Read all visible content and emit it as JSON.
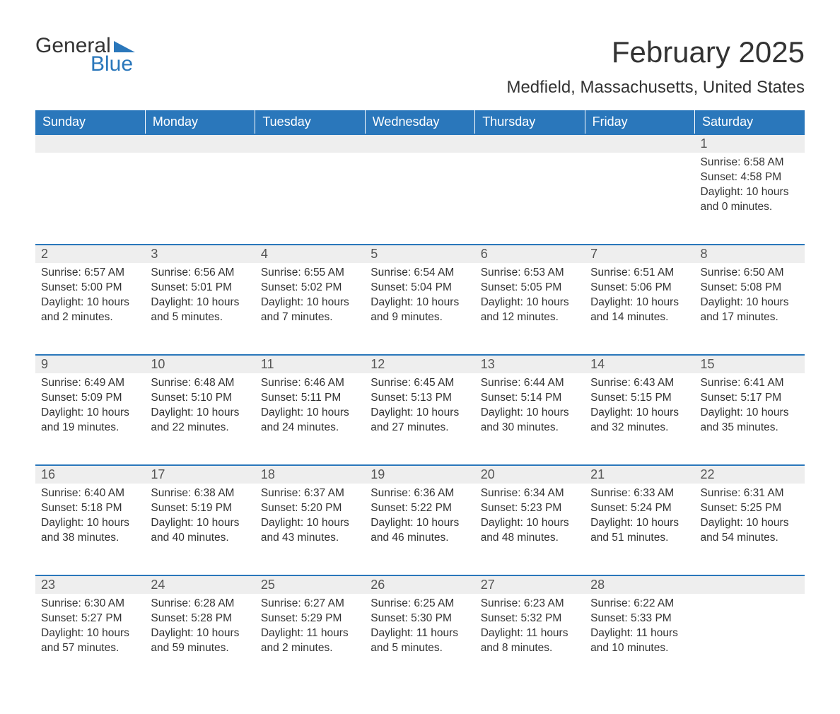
{
  "logo": {
    "text_general": "General",
    "text_blue": "Blue",
    "brand_color": "#2a77bb"
  },
  "title": "February 2025",
  "location": "Medfield, Massachusetts, United States",
  "colors": {
    "header_bg": "#2a77bb",
    "header_text": "#ffffff",
    "daynum_bg": "#eeeeee",
    "row_divider": "#2a77bb",
    "body_text": "#333333",
    "page_bg": "#ffffff"
  },
  "typography": {
    "title_fontsize": 42,
    "location_fontsize": 24,
    "dayheader_fontsize": 18,
    "daynum_fontsize": 18,
    "body_fontsize": 15.5
  },
  "day_headers": [
    "Sunday",
    "Monday",
    "Tuesday",
    "Wednesday",
    "Thursday",
    "Friday",
    "Saturday"
  ],
  "weeks": [
    [
      null,
      null,
      null,
      null,
      null,
      null,
      {
        "n": "1",
        "sr": "Sunrise: 6:58 AM",
        "ss": "Sunset: 4:58 PM",
        "dl": "Daylight: 10 hours and 0 minutes."
      }
    ],
    [
      {
        "n": "2",
        "sr": "Sunrise: 6:57 AM",
        "ss": "Sunset: 5:00 PM",
        "dl": "Daylight: 10 hours and 2 minutes."
      },
      {
        "n": "3",
        "sr": "Sunrise: 6:56 AM",
        "ss": "Sunset: 5:01 PM",
        "dl": "Daylight: 10 hours and 5 minutes."
      },
      {
        "n": "4",
        "sr": "Sunrise: 6:55 AM",
        "ss": "Sunset: 5:02 PM",
        "dl": "Daylight: 10 hours and 7 minutes."
      },
      {
        "n": "5",
        "sr": "Sunrise: 6:54 AM",
        "ss": "Sunset: 5:04 PM",
        "dl": "Daylight: 10 hours and 9 minutes."
      },
      {
        "n": "6",
        "sr": "Sunrise: 6:53 AM",
        "ss": "Sunset: 5:05 PM",
        "dl": "Daylight: 10 hours and 12 minutes."
      },
      {
        "n": "7",
        "sr": "Sunrise: 6:51 AM",
        "ss": "Sunset: 5:06 PM",
        "dl": "Daylight: 10 hours and 14 minutes."
      },
      {
        "n": "8",
        "sr": "Sunrise: 6:50 AM",
        "ss": "Sunset: 5:08 PM",
        "dl": "Daylight: 10 hours and 17 minutes."
      }
    ],
    [
      {
        "n": "9",
        "sr": "Sunrise: 6:49 AM",
        "ss": "Sunset: 5:09 PM",
        "dl": "Daylight: 10 hours and 19 minutes."
      },
      {
        "n": "10",
        "sr": "Sunrise: 6:48 AM",
        "ss": "Sunset: 5:10 PM",
        "dl": "Daylight: 10 hours and 22 minutes."
      },
      {
        "n": "11",
        "sr": "Sunrise: 6:46 AM",
        "ss": "Sunset: 5:11 PM",
        "dl": "Daylight: 10 hours and 24 minutes."
      },
      {
        "n": "12",
        "sr": "Sunrise: 6:45 AM",
        "ss": "Sunset: 5:13 PM",
        "dl": "Daylight: 10 hours and 27 minutes."
      },
      {
        "n": "13",
        "sr": "Sunrise: 6:44 AM",
        "ss": "Sunset: 5:14 PM",
        "dl": "Daylight: 10 hours and 30 minutes."
      },
      {
        "n": "14",
        "sr": "Sunrise: 6:43 AM",
        "ss": "Sunset: 5:15 PM",
        "dl": "Daylight: 10 hours and 32 minutes."
      },
      {
        "n": "15",
        "sr": "Sunrise: 6:41 AM",
        "ss": "Sunset: 5:17 PM",
        "dl": "Daylight: 10 hours and 35 minutes."
      }
    ],
    [
      {
        "n": "16",
        "sr": "Sunrise: 6:40 AM",
        "ss": "Sunset: 5:18 PM",
        "dl": "Daylight: 10 hours and 38 minutes."
      },
      {
        "n": "17",
        "sr": "Sunrise: 6:38 AM",
        "ss": "Sunset: 5:19 PM",
        "dl": "Daylight: 10 hours and 40 minutes."
      },
      {
        "n": "18",
        "sr": "Sunrise: 6:37 AM",
        "ss": "Sunset: 5:20 PM",
        "dl": "Daylight: 10 hours and 43 minutes."
      },
      {
        "n": "19",
        "sr": "Sunrise: 6:36 AM",
        "ss": "Sunset: 5:22 PM",
        "dl": "Daylight: 10 hours and 46 minutes."
      },
      {
        "n": "20",
        "sr": "Sunrise: 6:34 AM",
        "ss": "Sunset: 5:23 PM",
        "dl": "Daylight: 10 hours and 48 minutes."
      },
      {
        "n": "21",
        "sr": "Sunrise: 6:33 AM",
        "ss": "Sunset: 5:24 PM",
        "dl": "Daylight: 10 hours and 51 minutes."
      },
      {
        "n": "22",
        "sr": "Sunrise: 6:31 AM",
        "ss": "Sunset: 5:25 PM",
        "dl": "Daylight: 10 hours and 54 minutes."
      }
    ],
    [
      {
        "n": "23",
        "sr": "Sunrise: 6:30 AM",
        "ss": "Sunset: 5:27 PM",
        "dl": "Daylight: 10 hours and 57 minutes."
      },
      {
        "n": "24",
        "sr": "Sunrise: 6:28 AM",
        "ss": "Sunset: 5:28 PM",
        "dl": "Daylight: 10 hours and 59 minutes."
      },
      {
        "n": "25",
        "sr": "Sunrise: 6:27 AM",
        "ss": "Sunset: 5:29 PM",
        "dl": "Daylight: 11 hours and 2 minutes."
      },
      {
        "n": "26",
        "sr": "Sunrise: 6:25 AM",
        "ss": "Sunset: 5:30 PM",
        "dl": "Daylight: 11 hours and 5 minutes."
      },
      {
        "n": "27",
        "sr": "Sunrise: 6:23 AM",
        "ss": "Sunset: 5:32 PM",
        "dl": "Daylight: 11 hours and 8 minutes."
      },
      {
        "n": "28",
        "sr": "Sunrise: 6:22 AM",
        "ss": "Sunset: 5:33 PM",
        "dl": "Daylight: 11 hours and 10 minutes."
      },
      null
    ]
  ]
}
